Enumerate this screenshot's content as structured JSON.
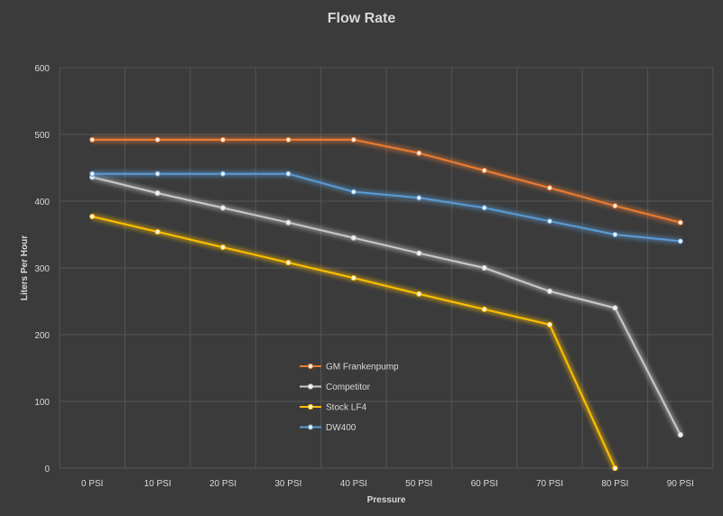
{
  "chart_data": {
    "type": "line",
    "title": "Flow Rate",
    "xlabel": "Pressure",
    "ylabel": "Liters Per Hour",
    "categories": [
      "0 PSI",
      "10 PSI",
      "20 PSI",
      "30 PSI",
      "40 PSI",
      "50 PSI",
      "60 PSI",
      "70 PSI",
      "80 PSI",
      "90 PSI"
    ],
    "ylim": [
      0,
      600
    ],
    "yticks": [
      "0",
      "100",
      "200",
      "300",
      "400",
      "500",
      "600"
    ],
    "grid": true,
    "legend_position": "center",
    "series": [
      {
        "name": "GM Frankenpump",
        "color": "#ed7d31",
        "values": [
          492,
          492,
          492,
          492,
          492,
          472,
          446,
          420,
          393,
          368
        ]
      },
      {
        "name": "Competitor",
        "color": "#c9c9c9",
        "values": [
          436,
          412,
          390,
          368,
          345,
          322,
          300,
          265,
          240,
          50
        ]
      },
      {
        "name": "Stock LF4",
        "color": "#ffc000",
        "values": [
          377,
          354,
          331,
          308,
          285,
          261,
          238,
          215,
          0,
          null
        ]
      },
      {
        "name": "DW400",
        "color": "#5b9bd5",
        "values": [
          441,
          441,
          441,
          441,
          414,
          405,
          390,
          370,
          350,
          340
        ]
      }
    ]
  }
}
